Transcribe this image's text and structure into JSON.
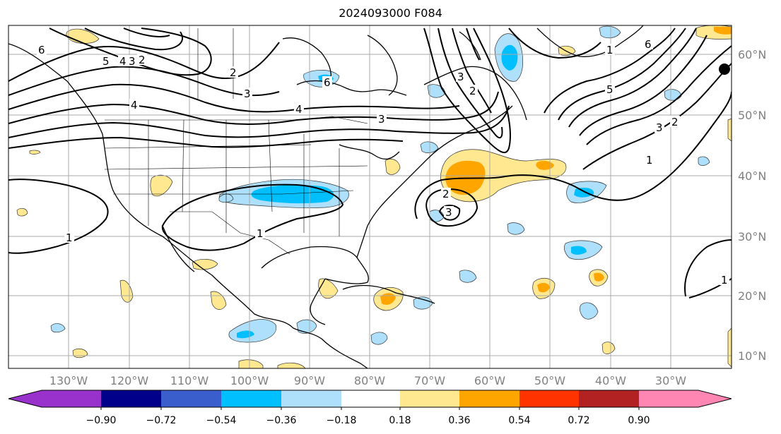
{
  "title": "2024093000 F084",
  "map": {
    "lon_labels": [
      "130°W",
      "120°W",
      "110°W",
      "100°W",
      "90°W",
      "80°W",
      "70°W",
      "60°W",
      "50°W",
      "40°W",
      "30°W"
    ],
    "lat_labels": [
      "60°N",
      "50°N",
      "40°N",
      "30°N",
      "20°N",
      "10°N"
    ],
    "grid": true,
    "contour_color": "#000000",
    "contour_labels": [
      "6",
      "5",
      "4",
      "3",
      "2",
      "4",
      "2",
      "3",
      "4",
      "6",
      "6",
      "3",
      "2",
      "3",
      "1",
      "2",
      "3",
      "5",
      "1",
      "3",
      "2",
      "1",
      "1",
      "1"
    ]
  },
  "colorbar": {
    "ticks": [
      "−0.90",
      "−0.72",
      "−0.54",
      "−0.36",
      "−0.18",
      "0.18",
      "0.36",
      "0.54",
      "0.72",
      "0.90"
    ],
    "colors": [
      "#9932cc",
      "#00008b",
      "#3a5fcd",
      "#00bfff",
      "#aee0fb",
      "#ffffff",
      "#ffe88f",
      "#ffa500",
      "#ff3300",
      "#b22222",
      "#ff85b3"
    ],
    "extend": "both"
  }
}
